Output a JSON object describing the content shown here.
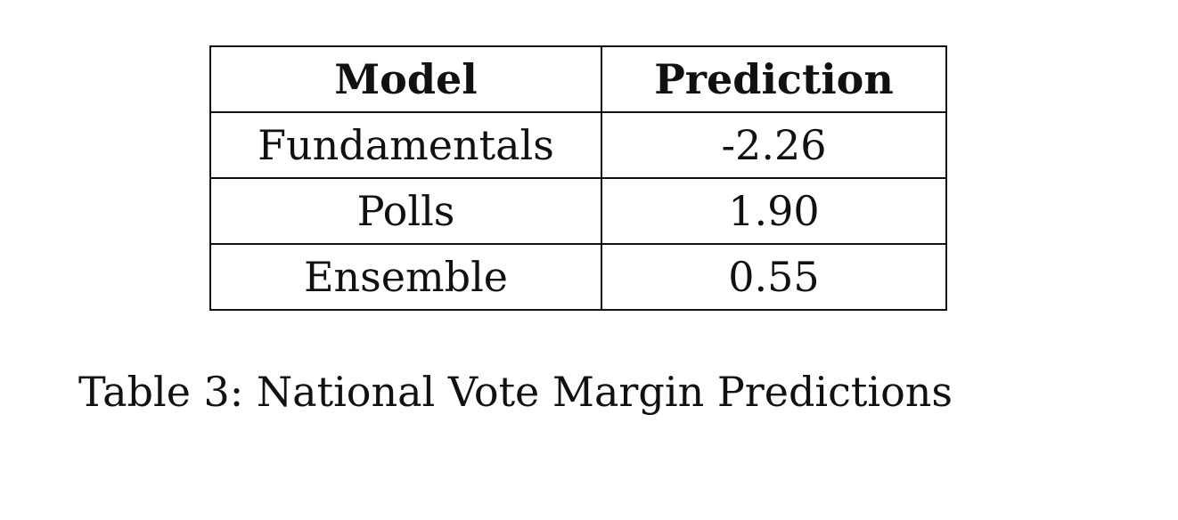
{
  "table": {
    "headers": [
      "Model",
      "Prediction"
    ],
    "rows": [
      {
        "model": "Fundamentals",
        "prediction": "-2.26"
      },
      {
        "model": "Polls",
        "prediction": "1.90"
      },
      {
        "model": "Ensemble",
        "prediction": "0.55"
      }
    ]
  },
  "caption": "Table 3: National Vote Margin Predictions",
  "chart_data": {
    "type": "table",
    "columns": [
      "Model",
      "Prediction"
    ],
    "rows": [
      [
        "Fundamentals",
        -2.26
      ],
      [
        "Polls",
        1.9
      ],
      [
        "Ensemble",
        0.55
      ]
    ],
    "caption": "Table 3: National Vote Margin Predictions"
  }
}
